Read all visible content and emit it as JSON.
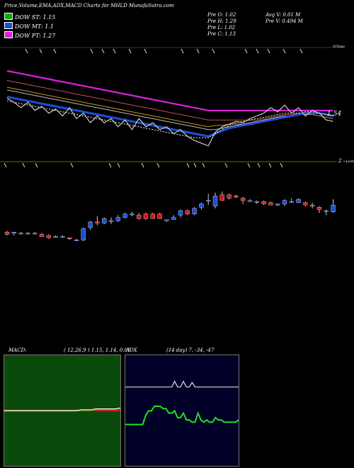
{
  "header": {
    "title": "Price,Volume,EMA,ADX,MACD Charts for MHLD MunafaSutra.com"
  },
  "legend": [
    {
      "label": "DOW ST: 1.15",
      "color": "#00b000"
    },
    {
      "label": "DOW MT: 1.1",
      "color": "#1a4fd8"
    },
    {
      "label": "DOW PT: 1.27",
      "color": "#e020e0"
    }
  ],
  "info": {
    "open": "Pre   O: 1.02",
    "high": "Pre   H: 1.29",
    "low": "Pre   L: 1.02",
    "close": "Pre   C: 1.13",
    "avg_vol": "Avg V: 0.01 M",
    "pre_vol": "Pre   V: 0.494   M"
  },
  "labels": {
    "price_label": "1.54",
    "volume_tag": "2",
    "top_tag": "©Tepo",
    "low_tag": "~Lenta"
  },
  "macd": {
    "label": "MACD:",
    "params": "( 12,26,9 ) 1.15,  1.14,  0.01"
  },
  "adx": {
    "label": "ADX",
    "params": "(14  day) 7,  -34,  -47"
  },
  "chart_data": [
    {
      "type": "candlestick",
      "title": "Price,Volume,EMA,ADX,MACD Charts for MHLD MunafaSutra.com",
      "candles": [
        {
          "o": 1.1,
          "h": 1.11,
          "l": 1.07,
          "c": 1.08
        },
        {
          "o": 1.09,
          "h": 1.1,
          "l": 1.07,
          "c": 1.1
        },
        {
          "o": 1.09,
          "h": 1.1,
          "l": 1.08,
          "c": 1.09
        },
        {
          "o": 1.09,
          "h": 1.1,
          "l": 1.08,
          "c": 1.09
        },
        {
          "o": 1.09,
          "h": 1.1,
          "l": 1.08,
          "c": 1.09
        },
        {
          "o": 1.08,
          "h": 1.09,
          "l": 1.06,
          "c": 1.06
        },
        {
          "o": 1.07,
          "h": 1.08,
          "l": 1.04,
          "c": 1.05
        },
        {
          "o": 1.06,
          "h": 1.07,
          "l": 1.05,
          "c": 1.06
        },
        {
          "o": 1.06,
          "h": 1.07,
          "l": 1.05,
          "c": 1.06
        },
        {
          "o": 1.05,
          "h": 1.05,
          "l": 1.03,
          "c": 1.04
        },
        {
          "o": 1.03,
          "h": 1.04,
          "l": 1.02,
          "c": 1.03
        },
        {
          "o": 1.03,
          "h": 1.14,
          "l": 1.02,
          "c": 1.13
        },
        {
          "o": 1.14,
          "h": 1.2,
          "l": 1.12,
          "c": 1.19
        },
        {
          "o": 1.19,
          "h": 1.24,
          "l": 1.16,
          "c": 1.18
        },
        {
          "o": 1.18,
          "h": 1.23,
          "l": 1.17,
          "c": 1.22
        },
        {
          "o": 1.2,
          "h": 1.23,
          "l": 1.17,
          "c": 1.2
        },
        {
          "o": 1.2,
          "h": 1.25,
          "l": 1.19,
          "c": 1.23
        },
        {
          "o": 1.23,
          "h": 1.27,
          "l": 1.22,
          "c": 1.26
        },
        {
          "o": 1.26,
          "h": 1.28,
          "l": 1.24,
          "c": 1.26
        },
        {
          "o": 1.25,
          "h": 1.27,
          "l": 1.21,
          "c": 1.22
        },
        {
          "o": 1.26,
          "h": 1.27,
          "l": 1.21,
          "c": 1.22
        },
        {
          "o": 1.26,
          "h": 1.27,
          "l": 1.22,
          "c": 1.22
        },
        {
          "o": 1.26,
          "h": 1.27,
          "l": 1.22,
          "c": 1.22
        },
        {
          "o": 1.2,
          "h": 1.21,
          "l": 1.19,
          "c": 1.21
        },
        {
          "o": 1.21,
          "h": 1.25,
          "l": 1.21,
          "c": 1.23
        },
        {
          "o": 1.25,
          "h": 1.3,
          "l": 1.23,
          "c": 1.29
        },
        {
          "o": 1.29,
          "h": 1.3,
          "l": 1.25,
          "c": 1.26
        },
        {
          "o": 1.26,
          "h": 1.32,
          "l": 1.25,
          "c": 1.31
        },
        {
          "o": 1.32,
          "h": 1.36,
          "l": 1.3,
          "c": 1.35
        },
        {
          "o": 1.38,
          "h": 1.44,
          "l": 1.34,
          "c": 1.38
        },
        {
          "o": 1.33,
          "h": 1.45,
          "l": 1.31,
          "c": 1.42
        },
        {
          "o": 1.43,
          "h": 1.46,
          "l": 1.38,
          "c": 1.38
        },
        {
          "o": 1.43,
          "h": 1.44,
          "l": 1.39,
          "c": 1.4
        },
        {
          "o": 1.42,
          "h": 1.43,
          "l": 1.4,
          "c": 1.41
        },
        {
          "o": 1.4,
          "h": 1.41,
          "l": 1.35,
          "c": 1.38
        },
        {
          "o": 1.37,
          "h": 1.39,
          "l": 1.37,
          "c": 1.38
        },
        {
          "o": 1.37,
          "h": 1.38,
          "l": 1.35,
          "c": 1.37
        },
        {
          "o": 1.37,
          "h": 1.38,
          "l": 1.34,
          "c": 1.35
        },
        {
          "o": 1.36,
          "h": 1.37,
          "l": 1.34,
          "c": 1.34
        },
        {
          "o": 1.34,
          "h": 1.35,
          "l": 1.33,
          "c": 1.35
        },
        {
          "o": 1.35,
          "h": 1.39,
          "l": 1.33,
          "c": 1.38
        },
        {
          "o": 1.37,
          "h": 1.4,
          "l": 1.36,
          "c": 1.37
        },
        {
          "o": 1.36,
          "h": 1.4,
          "l": 1.36,
          "c": 1.39
        },
        {
          "o": 1.36,
          "h": 1.37,
          "l": 1.33,
          "c": 1.34
        },
        {
          "o": 1.34,
          "h": 1.36,
          "l": 1.31,
          "c": 1.33
        },
        {
          "o": 1.32,
          "h": 1.33,
          "l": 1.27,
          "c": 1.3
        },
        {
          "o": 1.29,
          "h": 1.3,
          "l": 1.25,
          "c": 1.29
        },
        {
          "o": 1.28,
          "h": 1.39,
          "l": 1.27,
          "c": 1.34
        }
      ],
      "up_color": "#1a4fd8",
      "down_color": "#e01010",
      "ema_lines": [
        {
          "color": "#e020e0",
          "width": 2.2,
          "y": [
            1.93,
            1.92,
            1.91,
            1.9,
            1.89,
            1.88,
            1.87,
            1.86,
            1.85,
            1.84,
            1.83,
            1.82,
            1.81,
            1.8,
            1.79,
            1.78,
            1.77,
            1.76,
            1.75,
            1.74,
            1.73,
            1.72,
            1.71,
            1.7,
            1.69,
            1.68,
            1.67,
            1.66,
            1.65,
            1.64,
            1.64,
            1.64,
            1.64,
            1.64,
            1.64,
            1.64,
            1.64,
            1.64,
            1.64,
            1.64,
            1.64,
            1.64,
            1.64,
            1.64,
            1.64,
            1.64,
            1.64,
            1.64
          ]
        },
        {
          "color": "#c05050",
          "width": 1,
          "y": [
            1.86,
            1.85,
            1.84,
            1.83,
            1.82,
            1.81,
            1.8,
            1.79,
            1.78,
            1.77,
            1.76,
            1.75,
            1.74,
            1.73,
            1.72,
            1.71,
            1.7,
            1.69,
            1.68,
            1.67,
            1.66,
            1.65,
            1.64,
            1.63,
            1.62,
            1.61,
            1.6,
            1.59,
            1.58,
            1.57,
            1.57,
            1.57,
            1.57,
            1.57,
            1.57,
            1.57,
            1.57,
            1.58,
            1.59,
            1.6,
            1.61,
            1.61,
            1.62,
            1.62,
            1.62,
            1.62,
            1.61,
            1.6
          ]
        },
        {
          "color": "#d09020",
          "width": 1,
          "y": [
            1.81,
            1.8,
            1.79,
            1.78,
            1.77,
            1.76,
            1.75,
            1.74,
            1.73,
            1.72,
            1.71,
            1.7,
            1.69,
            1.68,
            1.67,
            1.66,
            1.65,
            1.64,
            1.63,
            1.62,
            1.61,
            1.6,
            1.59,
            1.58,
            1.57,
            1.56,
            1.55,
            1.54,
            1.53,
            1.52,
            1.53,
            1.53,
            1.54,
            1.54,
            1.54,
            1.55,
            1.56,
            1.57,
            1.58,
            1.59,
            1.6,
            1.6,
            1.61,
            1.61,
            1.61,
            1.6,
            1.59,
            1.58
          ]
        },
        {
          "color": "#bbbbbb",
          "width": 1,
          "y": [
            1.79,
            1.78,
            1.77,
            1.76,
            1.75,
            1.74,
            1.73,
            1.72,
            1.71,
            1.7,
            1.69,
            1.68,
            1.67,
            1.66,
            1.65,
            1.64,
            1.63,
            1.62,
            1.61,
            1.6,
            1.59,
            1.58,
            1.57,
            1.56,
            1.55,
            1.54,
            1.53,
            1.52,
            1.51,
            1.5,
            1.5,
            1.51,
            1.52,
            1.53,
            1.54,
            1.55,
            1.56,
            1.57,
            1.58,
            1.59,
            1.6,
            1.6,
            1.61,
            1.62,
            1.62,
            1.62,
            1.61,
            1.6
          ]
        },
        {
          "color": "#1a4fd8",
          "width": 3,
          "y": [
            1.74,
            1.73,
            1.72,
            1.71,
            1.7,
            1.69,
            1.68,
            1.67,
            1.66,
            1.65,
            1.64,
            1.63,
            1.62,
            1.61,
            1.6,
            1.59,
            1.58,
            1.57,
            1.56,
            1.55,
            1.54,
            1.53,
            1.52,
            1.51,
            1.5,
            1.49,
            1.48,
            1.47,
            1.46,
            1.45,
            1.47,
            1.49,
            1.51,
            1.52,
            1.53,
            1.54,
            1.55,
            1.56,
            1.57,
            1.58,
            1.59,
            1.6,
            1.61,
            1.62,
            1.62,
            1.62,
            1.61,
            1.6
          ]
        },
        {
          "color": "#ffffff",
          "width": 1,
          "dash": "2,2",
          "y": [
            1.71,
            1.7,
            1.69,
            1.68,
            1.67,
            1.66,
            1.65,
            1.64,
            1.63,
            1.62,
            1.61,
            1.6,
            1.59,
            1.58,
            1.57,
            1.56,
            1.55,
            1.54,
            1.53,
            1.52,
            1.51,
            1.5,
            1.49,
            1.48,
            1.47,
            1.46,
            1.45,
            1.44,
            1.44,
            1.44,
            1.47,
            1.5,
            1.53,
            1.55,
            1.56,
            1.57,
            1.58,
            1.59,
            1.6,
            1.61,
            1.62,
            1.62,
            1.62,
            1.63,
            1.63,
            1.62,
            1.61,
            1.6
          ]
        },
        {
          "color": "#cccccc",
          "width": 1.2,
          "y": [
            1.73,
            1.7,
            1.66,
            1.7,
            1.64,
            1.67,
            1.62,
            1.65,
            1.6,
            1.66,
            1.58,
            1.62,
            1.55,
            1.6,
            1.55,
            1.58,
            1.52,
            1.57,
            1.5,
            1.58,
            1.52,
            1.55,
            1.5,
            1.52,
            1.47,
            1.5,
            1.45,
            1.42,
            1.4,
            1.38,
            1.48,
            1.52,
            1.54,
            1.56,
            1.55,
            1.58,
            1.6,
            1.62,
            1.66,
            1.63,
            1.68,
            1.62,
            1.66,
            1.6,
            1.64,
            1.62,
            1.57,
            1.56
          ]
        }
      ]
    },
    {
      "type": "line",
      "title": "MACD: ( 12,26,9 ) 1.15,  1.14,  0.01",
      "series": [
        {
          "values": [
            0,
            0,
            0,
            0,
            0,
            0,
            0,
            0,
            0,
            0,
            0,
            0,
            0,
            0,
            0,
            0,
            0.01,
            0.01,
            0.01,
            0.02,
            0.02,
            0.02,
            0.02,
            0.02,
            0.03
          ]
        }
      ]
    },
    {
      "type": "line",
      "title": "ADX (14  day) 7,  -34,  -47",
      "series": [
        {
          "values": [
            47,
            47,
            47,
            47,
            47,
            47,
            47,
            47,
            47,
            47,
            47,
            47,
            47,
            47,
            47,
            47,
            47,
            52,
            47,
            47,
            52,
            47,
            47,
            51,
            47,
            47,
            47,
            47,
            47,
            47,
            47,
            47,
            47,
            47,
            47,
            47,
            47,
            47,
            47,
            47
          ]
        },
        {
          "values": [
            14,
            14,
            14,
            14,
            14,
            14,
            14,
            22,
            26,
            26,
            30,
            30,
            30,
            28,
            28,
            24,
            24,
            26,
            20,
            20,
            24,
            18,
            18,
            16,
            16,
            24,
            18,
            16,
            18,
            16,
            16,
            20,
            18,
            18,
            16,
            16,
            16,
            16,
            16,
            18
          ]
        }
      ]
    }
  ]
}
